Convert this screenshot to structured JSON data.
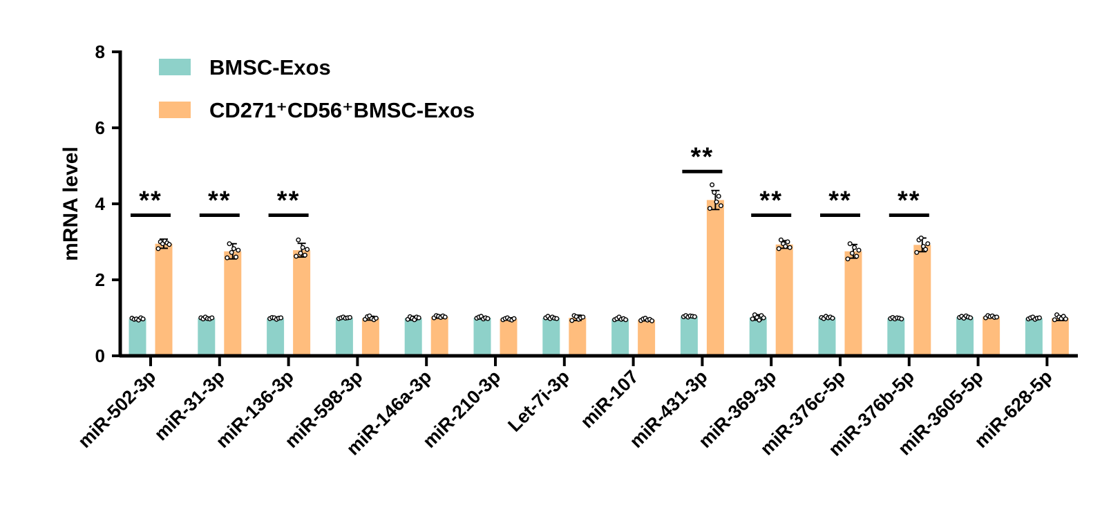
{
  "chart_data": {
    "type": "bar",
    "xlabel": "",
    "ylabel": "mRNA level",
    "ylim": [
      0,
      8
    ],
    "yticks": [
      0,
      2,
      4,
      6,
      8
    ],
    "grid": false,
    "legend_position": "top-left",
    "categories": [
      "miR-502-3p",
      "miR-31-3p",
      "miR-136-3p",
      "miR-598-3p",
      "miR-146a-3p",
      "miR-210-3p",
      "Let-7i-3p",
      "miR-107",
      "miR-431-3p",
      "miR-369-3p",
      "miR-376c-5p",
      "miR-376b-5p",
      "miR-3605-5p",
      "miR-628-5p"
    ],
    "series": [
      {
        "name": "BMSC-Exos",
        "color": "#8ed1c9",
        "values": [
          0.97,
          0.99,
          0.99,
          1.0,
          0.99,
          1.0,
          1.0,
          0.97,
          1.04,
          1.01,
          1.01,
          0.99,
          1.02,
          0.99
        ],
        "errors": [
          0.03,
          0.03,
          0.03,
          0.02,
          0.05,
          0.03,
          0.03,
          0.03,
          0.02,
          0.07,
          0.03,
          0.03,
          0.03,
          0.03
        ],
        "points": [
          [
            0.99,
            0.96,
            0.97,
            0.94,
            1.0,
            0.97
          ],
          [
            1.0,
            0.97,
            1.02,
            0.98,
            0.97,
            1.0
          ],
          [
            0.98,
            1.01,
            1.0,
            0.96,
            0.99,
            1.0
          ],
          [
            0.98,
            1.0,
            1.02,
            0.99,
            1.0,
            1.01
          ],
          [
            0.96,
            1.03,
            0.99,
            0.95,
            1.02,
            1.0
          ],
          [
            0.99,
            1.02,
            1.04,
            0.97,
            1.0,
            0.98
          ],
          [
            1.0,
            1.04,
            0.98,
            1.02,
            0.99,
            0.98
          ],
          [
            0.95,
            0.98,
            1.02,
            0.96,
            0.98,
            0.95
          ],
          [
            1.03,
            1.06,
            1.02,
            1.05,
            1.04,
            1.03
          ],
          [
            0.97,
            1.08,
            1.01,
            0.94,
            1.06,
            1.0
          ],
          [
            1.01,
            0.98,
            1.04,
            1.0,
            1.02,
            0.99
          ],
          [
            0.98,
            1.01,
            0.97,
            1.0,
            0.99,
            0.97
          ],
          [
            1.01,
            1.04,
            0.99,
            1.05,
            1.02,
            1.0
          ],
          [
            0.97,
            1.0,
            1.02,
            0.96,
            0.99,
            1.0
          ]
        ]
      },
      {
        "name": "CD271⁺CD56⁺BMSC-Exos",
        "color": "#ffbd7d",
        "values": [
          2.95,
          2.75,
          2.78,
          0.99,
          1.03,
          0.97,
          1.0,
          0.95,
          4.1,
          2.93,
          2.75,
          2.92,
          1.03,
          0.99
        ],
        "errors": [
          0.12,
          0.2,
          0.18,
          0.05,
          0.04,
          0.03,
          0.07,
          0.03,
          0.25,
          0.1,
          0.18,
          0.18,
          0.03,
          0.06
        ],
        "points": [
          [
            2.82,
            3.0,
            2.95,
            3.02,
            2.97,
            2.93
          ],
          [
            2.58,
            2.95,
            2.72,
            2.82,
            2.6,
            2.78
          ],
          [
            2.62,
            3.05,
            2.7,
            2.85,
            2.65,
            2.8
          ],
          [
            0.96,
            1.03,
            1.05,
            0.98,
            0.95,
            0.99
          ],
          [
            1.0,
            1.06,
            1.04,
            1.01,
            1.05,
            1.02
          ],
          [
            0.95,
            0.98,
            1.0,
            0.96,
            0.94,
            0.98
          ],
          [
            0.93,
            1.06,
            1.03,
            0.96,
            1.0,
            1.02
          ],
          [
            0.93,
            0.97,
            0.99,
            0.94,
            0.96,
            0.92
          ],
          [
            3.88,
            4.5,
            4.3,
            4.05,
            4.2,
            3.95
          ],
          [
            2.82,
            3.05,
            2.95,
            2.88,
            3.0,
            2.85
          ],
          [
            2.55,
            2.95,
            2.7,
            2.85,
            2.62,
            2.78
          ],
          [
            2.72,
            3.05,
            3.1,
            2.88,
            2.8,
            2.95
          ],
          [
            1.0,
            1.06,
            1.03,
            1.05,
            1.01,
            1.02
          ],
          [
            0.95,
            1.08,
            1.02,
            0.98,
            1.04,
            0.97
          ]
        ]
      }
    ],
    "annotations": [
      {
        "category_index": 0,
        "text": "**",
        "bar_y": 3.7
      },
      {
        "category_index": 1,
        "text": "**",
        "bar_y": 3.7
      },
      {
        "category_index": 2,
        "text": "**",
        "bar_y": 3.7
      },
      {
        "category_index": 8,
        "text": "**",
        "bar_y": 4.85
      },
      {
        "category_index": 9,
        "text": "**",
        "bar_y": 3.7
      },
      {
        "category_index": 10,
        "text": "**",
        "bar_y": 3.7
      },
      {
        "category_index": 11,
        "text": "**",
        "bar_y": 3.7
      }
    ]
  }
}
